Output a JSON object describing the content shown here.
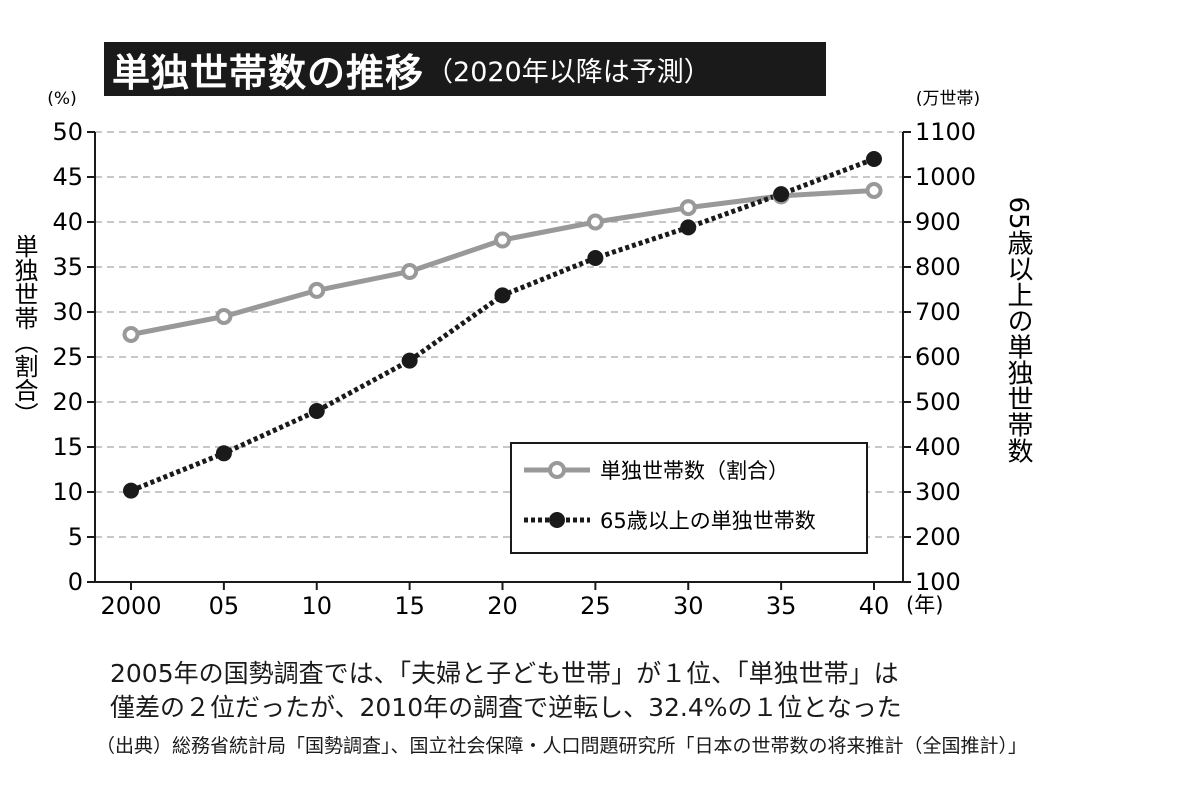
{
  "title": {
    "main": "単独世帯数の推移",
    "sub": "（2020年以降は予測）"
  },
  "chart_data": {
    "type": "line",
    "title": "単独世帯数の推移（2020年以降は予測）",
    "x": [
      "2000",
      "05",
      "10",
      "15",
      "20",
      "25",
      "30",
      "35",
      "40"
    ],
    "x_unit": "(年)",
    "y_left": {
      "label": "単独世帯（割合）",
      "unit": "(%)",
      "range": [
        0,
        50
      ],
      "ticks": [
        "0",
        "5",
        "10",
        "15",
        "20",
        "25",
        "30",
        "35",
        "40",
        "45",
        "50"
      ]
    },
    "y_right": {
      "label": "65歳以上の単独世帯数",
      "unit": "(万世帯)",
      "range": [
        100,
        1100
      ],
      "ticks": [
        "100",
        "200",
        "300",
        "400",
        "500",
        "600",
        "700",
        "800",
        "900",
        "1000",
        "1100"
      ]
    },
    "grid": "horizontal dashed",
    "legend_position": "lower-right",
    "series": [
      {
        "name": "単独世帯数（割合）",
        "axis": "left",
        "style": "solid gray line, hollow circle markers",
        "color": "#999999",
        "values": [
          27.5,
          29.5,
          32.4,
          34.5,
          38.0,
          40.0,
          41.6,
          42.9,
          43.5
        ]
      },
      {
        "name": "65歳以上の単独世帯数",
        "axis": "right",
        "style": "dotted black line, filled circle markers",
        "color": "#1a1a1a",
        "values": [
          303,
          386,
          480,
          592,
          737,
          820,
          888,
          962,
          1040
        ]
      }
    ]
  },
  "caption": {
    "line1": "2005年の国勢調査では、「夫婦と子ども世帯」が１位、「単独世帯」は",
    "line2": "僅差の２位だったが、2010年の調査で逆転し、32.4%の１位となった"
  },
  "source": "（出典）総務省統計局「国勢調査」、国立社会保障・人口問題研究所「日本の世帯数の将来推計（全国推計）」"
}
